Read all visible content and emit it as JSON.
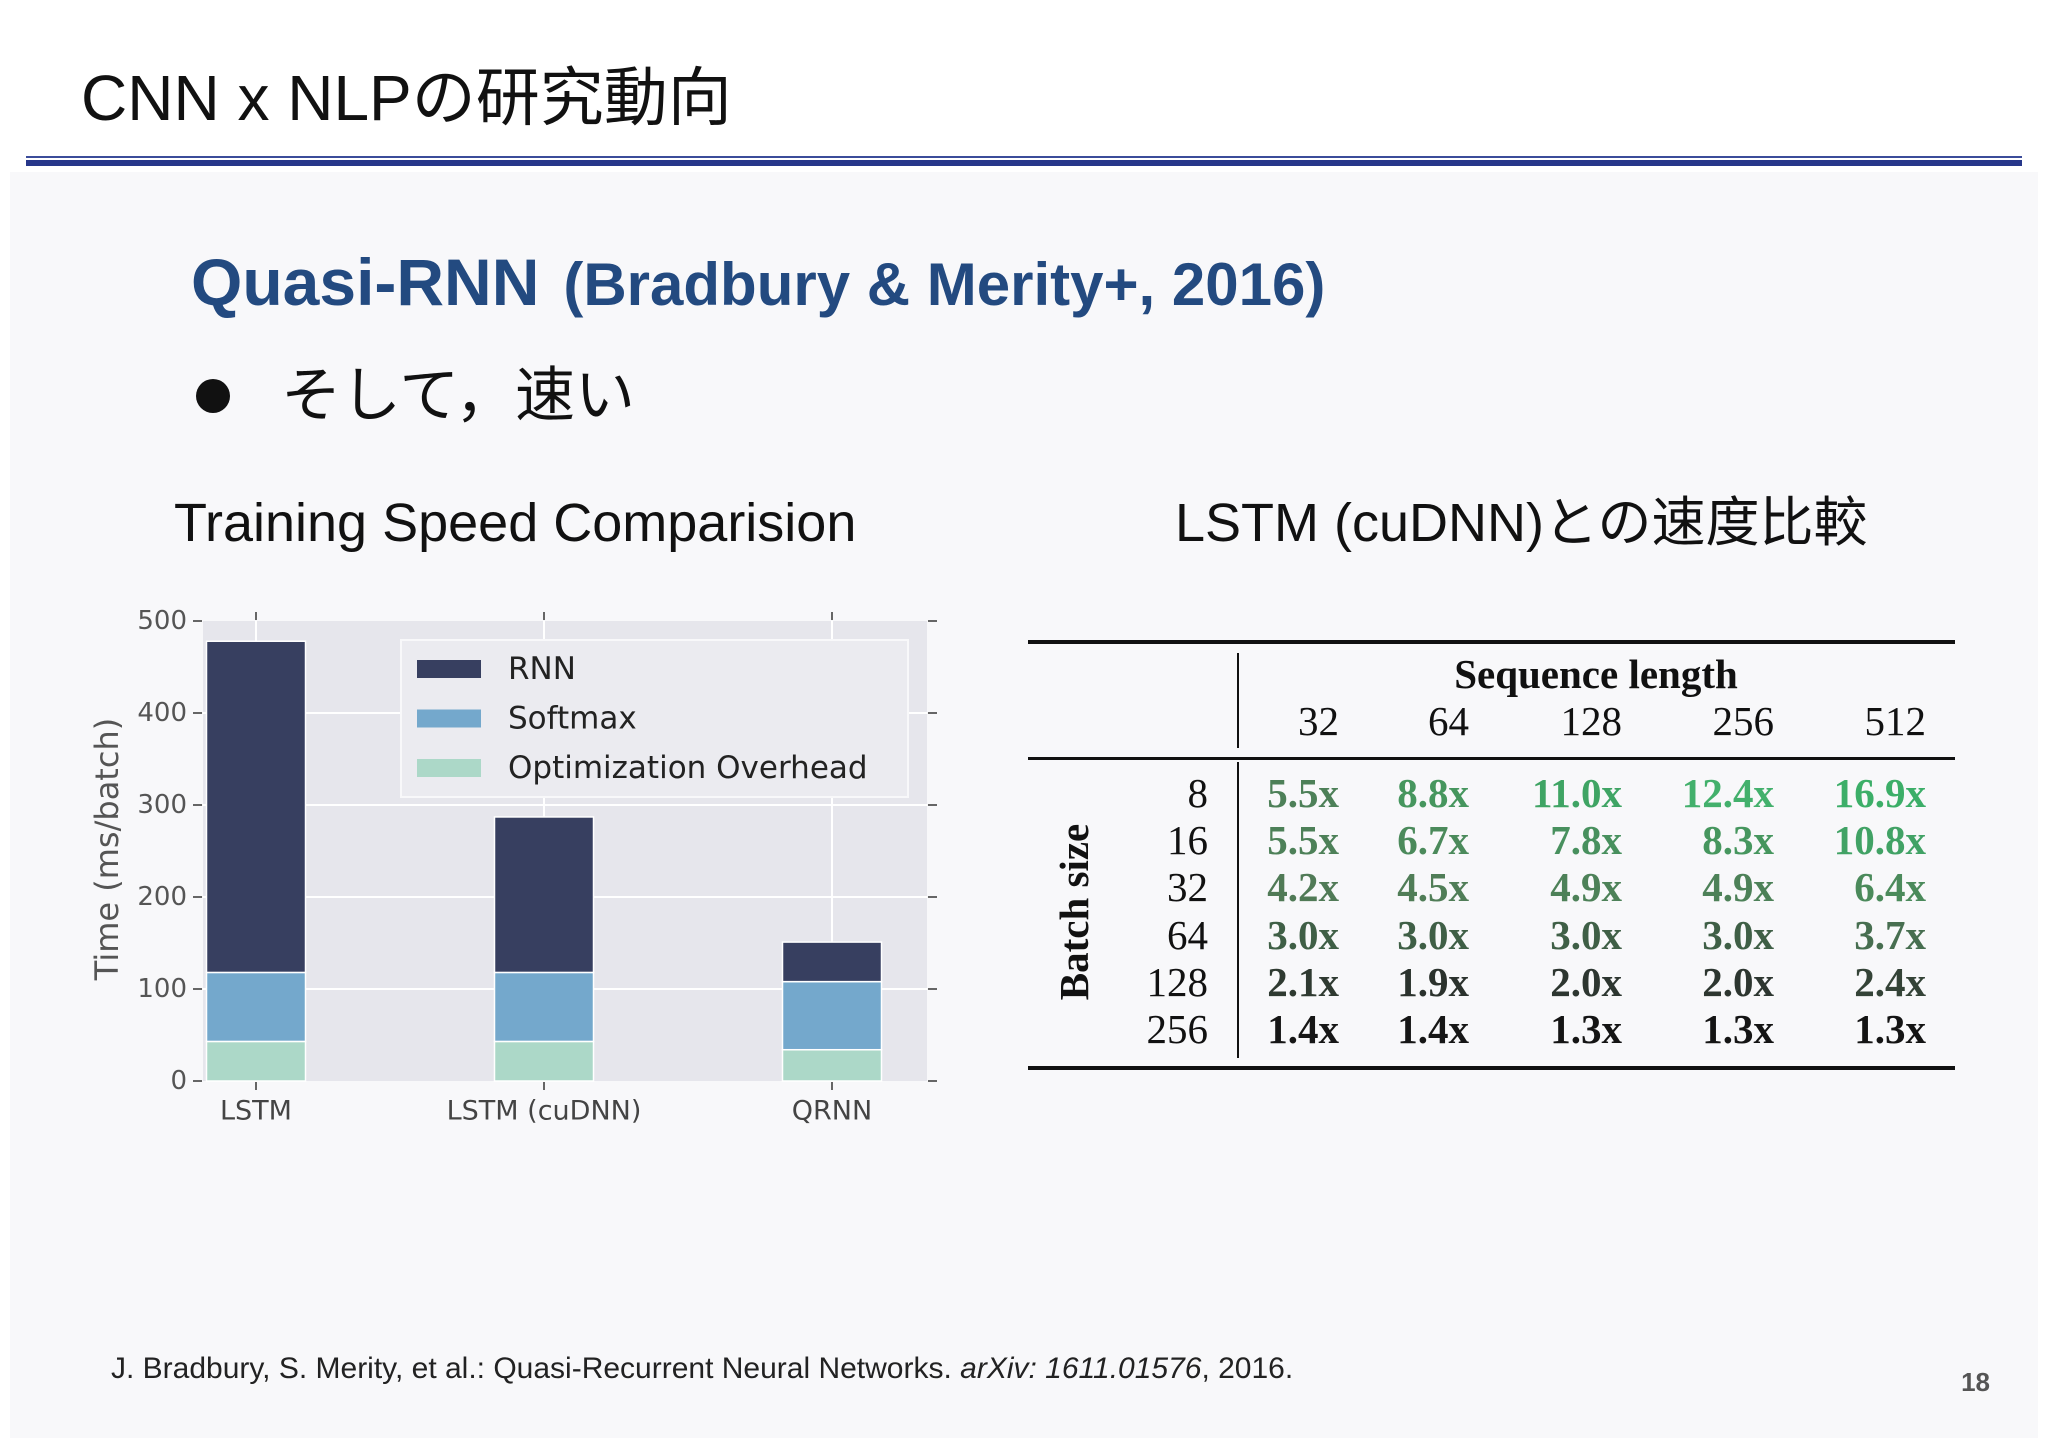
{
  "slide": {
    "title": "CNN x NLPの研究動向",
    "heading_main": "Quasi-RNN",
    "heading_sub": "(Bradbury & Merity+, 2016)",
    "bullet": "そして，速い",
    "left_caption": "Training Speed Comparision",
    "right_caption": "LSTM (cuDNN)との速度比較",
    "footer_prefix": "J. Bradbury, S. Merity, et al.: Quasi-Recurrent Neural Networks. ",
    "footer_italic": "arXiv: 1611.01576",
    "footer_suffix": ", 2016.",
    "page_number": "18",
    "colors": {
      "heading": "#234a80",
      "rule": "#27378a"
    }
  },
  "chart_data": {
    "type": "bar",
    "stacked": true,
    "categories": [
      "LSTM",
      "LSTM (cuDNN)",
      "QRNN"
    ],
    "series": [
      {
        "name": "RNN",
        "values": [
          360,
          169,
          43
        ],
        "color": "#373f60"
      },
      {
        "name": "Softmax",
        "values": [
          75,
          75,
          74
        ],
        "color": "#74a8cc"
      },
      {
        "name": "Optimization Overhead",
        "values": [
          43,
          43,
          34
        ],
        "color": "#acd8c8"
      }
    ],
    "ylabel": "Time (ms/batch)",
    "ylim": [
      0,
      500
    ],
    "yticks": [
      0,
      100,
      200,
      300,
      400,
      500
    ],
    "grid": true,
    "legend": "top-right"
  },
  "table": {
    "column_group_label": "Sequence length",
    "row_group_label": "Batch size",
    "columns": [
      "32",
      "64",
      "128",
      "256",
      "512"
    ],
    "rows": [
      {
        "label": "8",
        "cells": [
          {
            "v": "5.5x",
            "c": "#4d8058"
          },
          {
            "v": "8.8x",
            "c": "#46965e"
          },
          {
            "v": "11.0x",
            "c": "#3fa464"
          },
          {
            "v": "12.4x",
            "c": "#43b06c"
          },
          {
            "v": "16.9x",
            "c": "#3cae68"
          }
        ]
      },
      {
        "label": "16",
        "cells": [
          {
            "v": "5.5x",
            "c": "#4d8058"
          },
          {
            "v": "6.7x",
            "c": "#4b8a5b"
          },
          {
            "v": "7.8x",
            "c": "#48905e"
          },
          {
            "v": "8.3x",
            "c": "#46965e"
          },
          {
            "v": "10.8x",
            "c": "#41a265"
          }
        ]
      },
      {
        "label": "32",
        "cells": [
          {
            "v": "4.2x",
            "c": "#507a56"
          },
          {
            "v": "4.5x",
            "c": "#507d57"
          },
          {
            "v": "4.9x",
            "c": "#4d8158"
          },
          {
            "v": "4.9x",
            "c": "#4d8158"
          },
          {
            "v": "6.4x",
            "c": "#4b8a5b"
          }
        ]
      },
      {
        "label": "64",
        "cells": [
          {
            "v": "3.0x",
            "c": "#3f5f46"
          },
          {
            "v": "3.0x",
            "c": "#3f5f46"
          },
          {
            "v": "3.0x",
            "c": "#3f5f46"
          },
          {
            "v": "3.0x",
            "c": "#3f5f46"
          },
          {
            "v": "3.7x",
            "c": "#476e50"
          }
        ]
      },
      {
        "label": "128",
        "cells": [
          {
            "v": "2.1x",
            "c": "#2f3a31"
          },
          {
            "v": "1.9x",
            "c": "#2b322d"
          },
          {
            "v": "2.0x",
            "c": "#2d3630"
          },
          {
            "v": "2.0x",
            "c": "#2d3630"
          },
          {
            "v": "2.4x",
            "c": "#344337"
          }
        ]
      },
      {
        "label": "256",
        "cells": [
          {
            "v": "1.4x",
            "c": "#161616"
          },
          {
            "v": "1.4x",
            "c": "#161616"
          },
          {
            "v": "1.3x",
            "c": "#141414"
          },
          {
            "v": "1.3x",
            "c": "#141414"
          },
          {
            "v": "1.3x",
            "c": "#141414"
          }
        ]
      }
    ]
  }
}
